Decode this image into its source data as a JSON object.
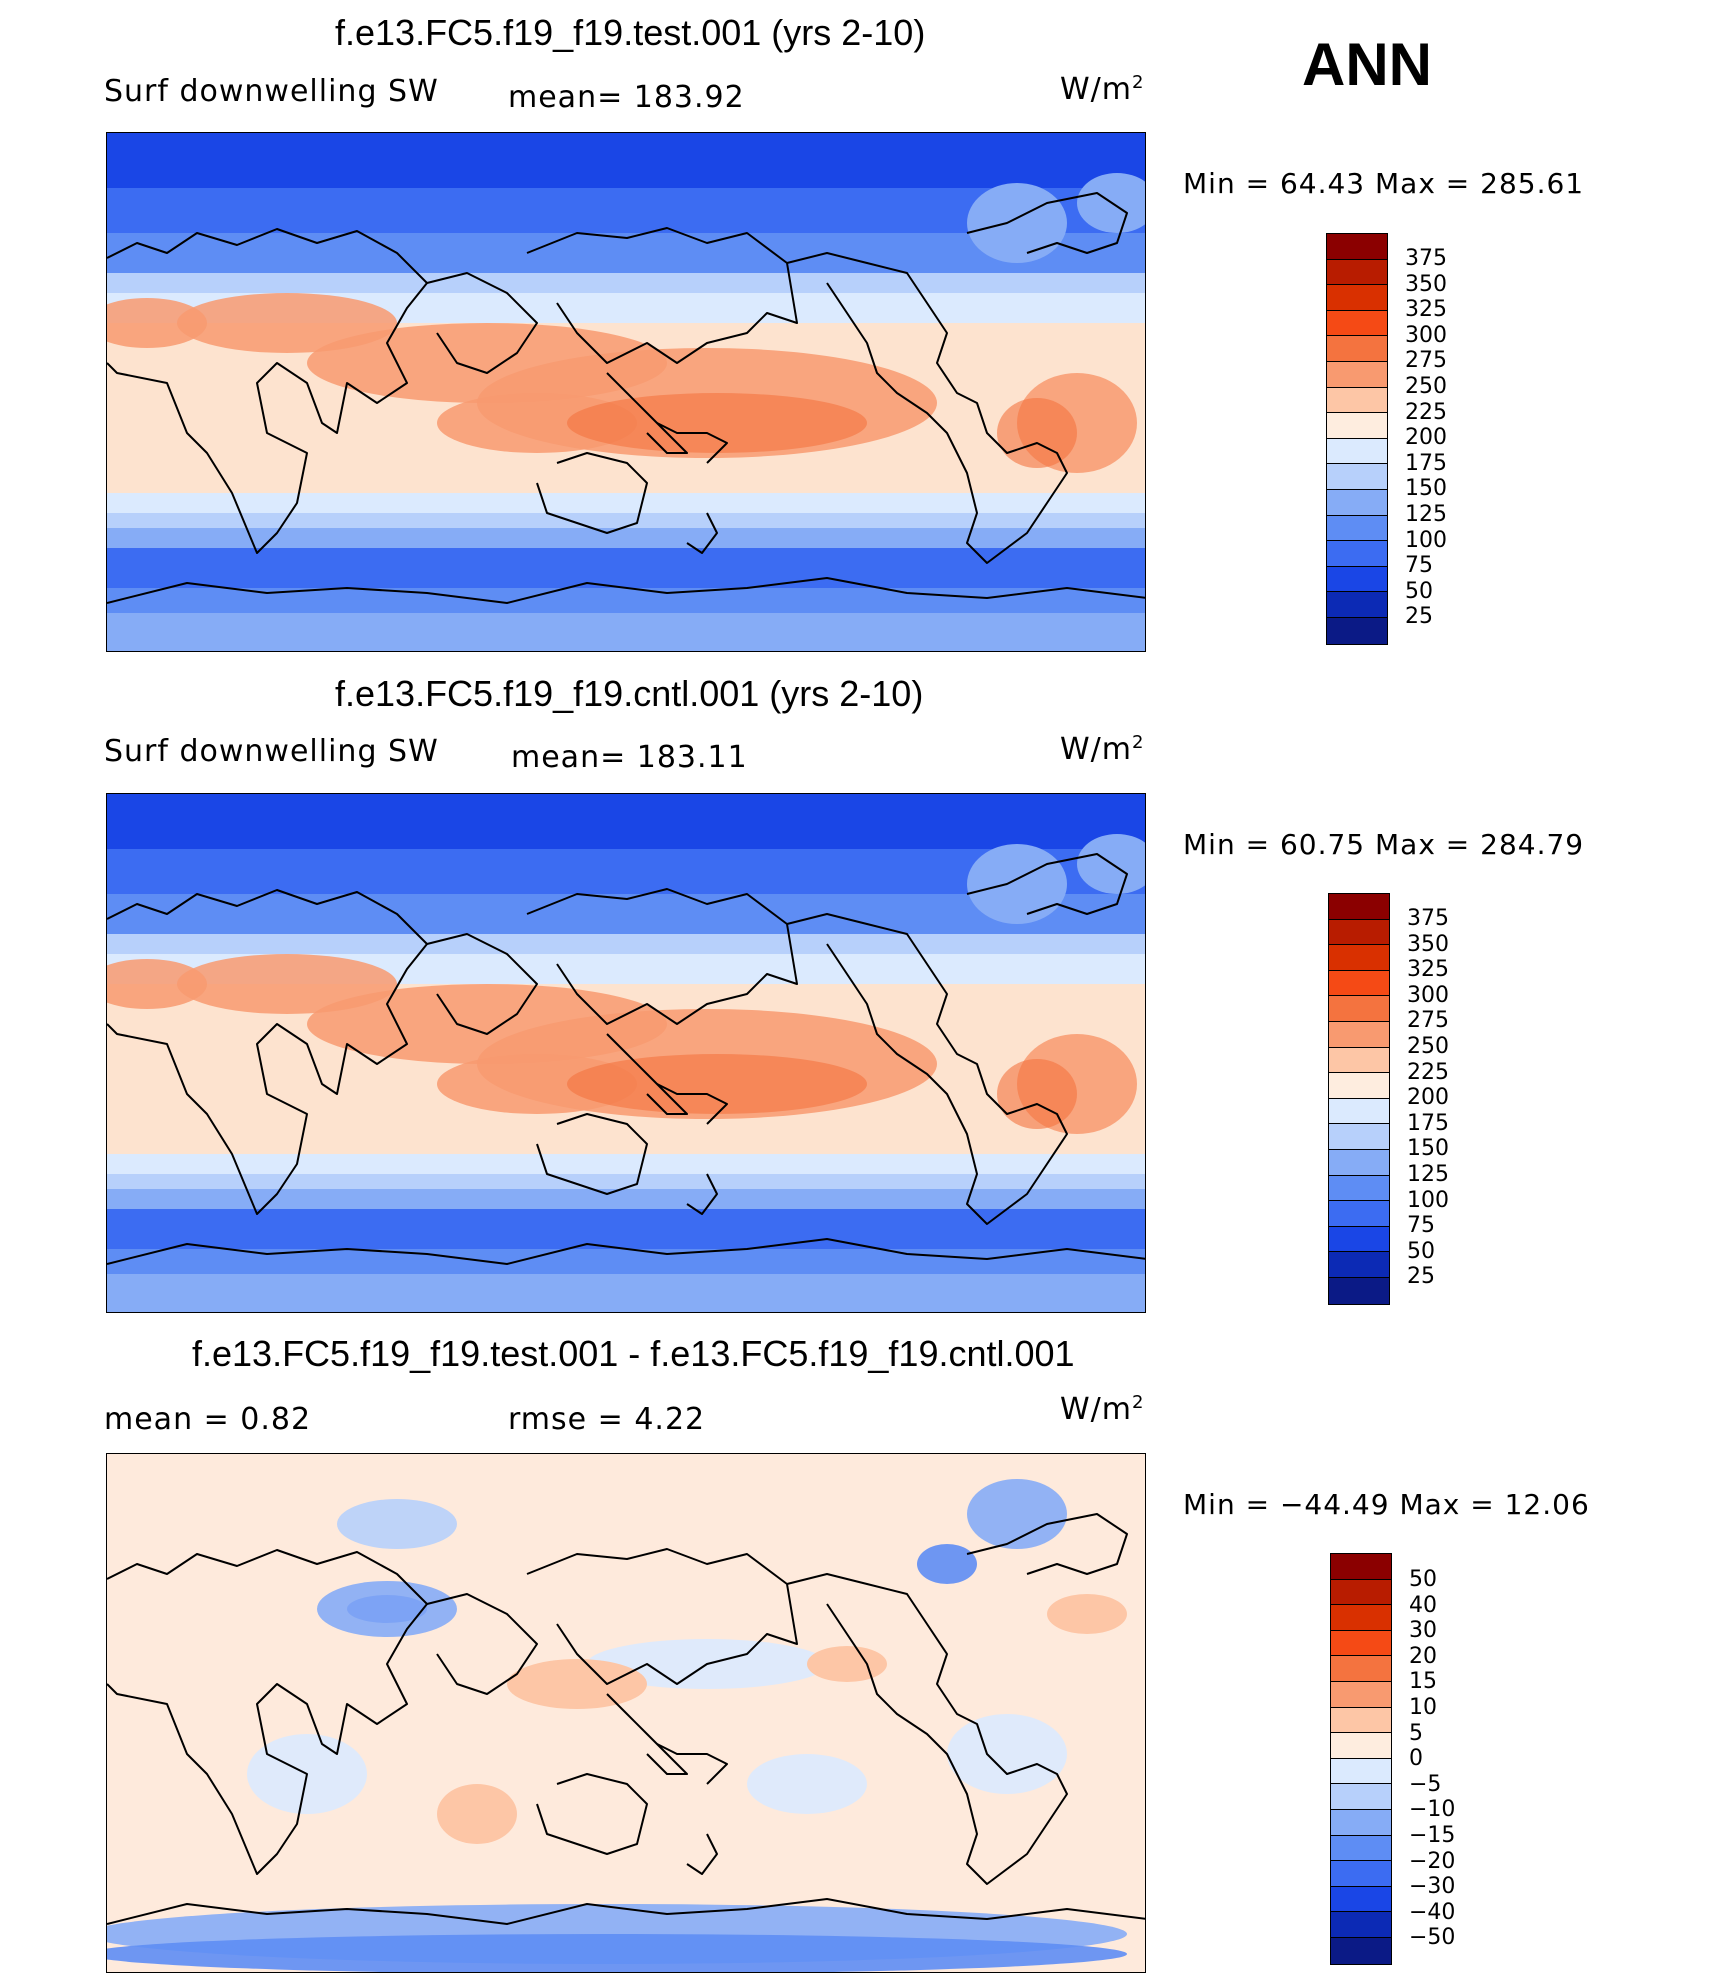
{
  "season": "ANN",
  "panels": [
    {
      "title": "f.e13.FC5.f19_f19.test.001 (yrs 2-10)",
      "left_label": "Surf  downwelling  SW",
      "center_label": "mean=  183.92",
      "units": "W/m",
      "units_sup": "2",
      "minmax": "Min  =    64.43  Max  =  285.61",
      "fill": "#fde3cf",
      "levels": [
        "375",
        "350",
        "325",
        "300",
        "275",
        "250",
        "225",
        "200",
        "175",
        "150",
        "125",
        "100",
        "75",
        "50",
        "25"
      ],
      "colors": [
        "#8b0000",
        "#b81c00",
        "#d93000",
        "#f54a15",
        "#f4733f",
        "#f89a70",
        "#fdc6a6",
        "#feeddf",
        "#dbeafe",
        "#b7d0fb",
        "#86acf6",
        "#5e8df4",
        "#3c6cf2",
        "#1a46e6",
        "#0c2ab5",
        "#0b1a86"
      ]
    },
    {
      "title": "f.e13.FC5.f19_f19.cntl.001 (yrs 2-10)",
      "left_label": "Surf  downwelling  SW",
      "center_label": "mean=  183.11",
      "units": "W/m",
      "units_sup": "2",
      "minmax": "Min  =    60.75  Max  =  284.79",
      "fill": "#fde3cf",
      "levels": [
        "375",
        "350",
        "325",
        "300",
        "275",
        "250",
        "225",
        "200",
        "175",
        "150",
        "125",
        "100",
        "75",
        "50",
        "25"
      ],
      "colors": [
        "#8b0000",
        "#b81c00",
        "#d93000",
        "#f54a15",
        "#f4733f",
        "#f89a70",
        "#fdc6a6",
        "#feeddf",
        "#dbeafe",
        "#b7d0fb",
        "#86acf6",
        "#5e8df4",
        "#3c6cf2",
        "#1a46e6",
        "#0c2ab5",
        "#0b1a86"
      ]
    },
    {
      "title": "f.e13.FC5.f19_f19.test.001 - f.e13.FC5.f19_f19.cntl.001",
      "left_label": "mean  =     0.82",
      "center_label": "rmse  =     4.22",
      "units": "W/m",
      "units_sup": "2",
      "minmax": "Min  = −44.49  Max  =    12.06",
      "fill": "#feeadc",
      "levels": [
        "50",
        "40",
        "30",
        "20",
        "15",
        "10",
        "5",
        "0",
        "−5",
        "−10",
        "−15",
        "−20",
        "−30",
        "−40",
        "−50"
      ],
      "colors": [
        "#8b0000",
        "#b81c00",
        "#d93000",
        "#f54a15",
        "#f4733f",
        "#f89a70",
        "#fdc6a6",
        "#feeddf",
        "#dbeafe",
        "#b7d0fb",
        "#86acf6",
        "#5e8df4",
        "#3c6cf2",
        "#1a46e6",
        "#0c2ab5",
        "#0b1a86"
      ]
    }
  ]
}
